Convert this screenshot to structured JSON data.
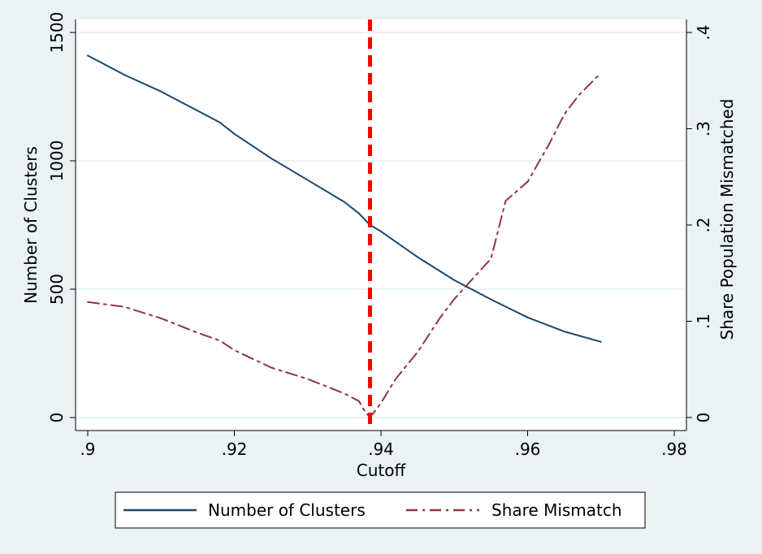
{
  "chart_data": {
    "type": "line",
    "xlabel": "Cutoff",
    "ylabel_left": "Number of Clusters",
    "ylabel_right": "Share Population Mismatched",
    "xlim": [
      0.9,
      0.98
    ],
    "ylim_left": [
      0,
      1500
    ],
    "ylim_right": [
      0,
      0.4
    ],
    "x_ticks": [
      {
        "value": 0.9,
        "label": ".9"
      },
      {
        "value": 0.92,
        "label": ".92"
      },
      {
        "value": 0.94,
        "label": ".94"
      },
      {
        "value": 0.96,
        "label": ".96"
      },
      {
        "value": 0.98,
        "label": ".98"
      }
    ],
    "y_left_ticks": [
      {
        "value": 0,
        "label": "0"
      },
      {
        "value": 500,
        "label": "500"
      },
      {
        "value": 1000,
        "label": "1000"
      },
      {
        "value": 1500,
        "label": "1500"
      }
    ],
    "y_right_ticks": [
      {
        "value": 0,
        "label": "0"
      },
      {
        "value": 0.1,
        "label": ".1"
      },
      {
        "value": 0.2,
        "label": ".2"
      },
      {
        "value": 0.3,
        "label": ".3"
      },
      {
        "value": 0.4,
        "label": ".4"
      }
    ],
    "grid": "horizontal",
    "legend_position": "bottom",
    "vertical_line": {
      "x": 0.9385,
      "color": "#ff0000",
      "style": "dashed"
    },
    "series": [
      {
        "name": "Number of Clusters",
        "axis": "left",
        "color": "#1a476f",
        "style": "solid",
        "x": [
          0.9,
          0.905,
          0.91,
          0.915,
          0.918,
          0.92,
          0.925,
          0.93,
          0.935,
          0.937,
          0.9385,
          0.94,
          0.945,
          0.95,
          0.955,
          0.96,
          0.965,
          0.97
        ],
        "y": [
          1410,
          1335,
          1270,
          1195,
          1150,
          1105,
          1010,
          925,
          840,
          795,
          750,
          725,
          625,
          535,
          460,
          390,
          335,
          295
        ]
      },
      {
        "name": "Share Mismatch",
        "axis": "right",
        "color": "#90353b",
        "style": "dashdot",
        "x": [
          0.9,
          0.905,
          0.91,
          0.915,
          0.918,
          0.92,
          0.925,
          0.93,
          0.935,
          0.937,
          0.938,
          0.9385,
          0.939,
          0.94,
          0.942,
          0.945,
          0.948,
          0.95,
          0.952,
          0.955,
          0.957,
          0.96,
          0.963,
          0.965,
          0.967,
          0.97
        ],
        "y": [
          0.12,
          0.115,
          0.103,
          0.088,
          0.08,
          0.07,
          0.052,
          0.04,
          0.025,
          0.017,
          0.004,
          0.001,
          0.005,
          0.015,
          0.04,
          0.068,
          0.103,
          0.123,
          0.14,
          0.165,
          0.225,
          0.245,
          0.285,
          0.315,
          0.335,
          0.358
        ]
      }
    ]
  }
}
